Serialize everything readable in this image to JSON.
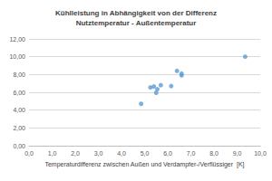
{
  "chart_data": {
    "type": "scatter",
    "title": "Kühlleistung in Abhängigkeit von der Differenz\nNutztemperatur - Außentemperatur",
    "x_label": "Temperaturdifferenz zwischen Außen und Verdampfer-/Verflüssiger  [K]",
    "x": [
      4.85,
      5.25,
      5.4,
      5.5,
      5.55,
      5.7,
      6.15,
      6.4,
      6.6,
      6.6,
      9.35
    ],
    "values": [
      4.7,
      6.55,
      6.65,
      5.95,
      6.35,
      6.8,
      6.7,
      8.4,
      7.9,
      8.1,
      10.0
    ],
    "color": "#5b9bd5",
    "marker": "circle",
    "xlim": [
      0,
      10
    ],
    "xticks": [
      {
        "value": 0,
        "label": "0,0"
      },
      {
        "value": 1,
        "label": "1,0"
      },
      {
        "value": 2,
        "label": "2,0"
      },
      {
        "value": 3,
        "label": "3,0"
      },
      {
        "value": 4,
        "label": "4,0"
      },
      {
        "value": 5,
        "label": "5,0"
      },
      {
        "value": 6,
        "label": "6,0"
      },
      {
        "value": 7,
        "label": "7,0"
      },
      {
        "value": 8,
        "label": "8,0"
      },
      {
        "value": 9,
        "label": "9,0"
      },
      {
        "value": 10,
        "label": "10,0"
      }
    ],
    "ylim": [
      0,
      12
    ],
    "yticks": [
      {
        "value": 0,
        "label": "0,00"
      },
      {
        "value": 2,
        "label": "2,00"
      },
      {
        "value": 4,
        "label": "4,00"
      },
      {
        "value": 6,
        "label": "6,00"
      },
      {
        "value": 8,
        "label": "8,00"
      },
      {
        "value": 10,
        "label": "10,00"
      },
      {
        "value": 12,
        "label": "12,00"
      }
    ],
    "grid": true
  }
}
